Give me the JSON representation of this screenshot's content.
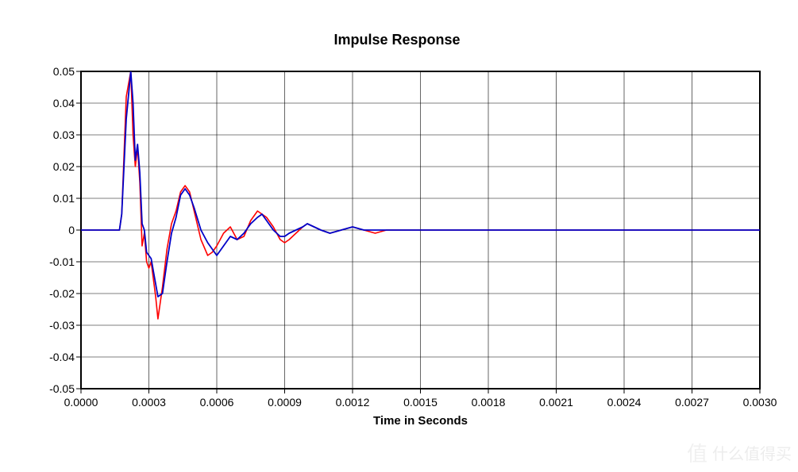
{
  "chart": {
    "type": "line",
    "title": "Impulse Response",
    "title_fontsize": 18,
    "title_fontweight": "bold",
    "xlabel": "Time in Seconds",
    "xlabel_fontsize": 15,
    "xlabel_fontweight": "bold",
    "axis_tick_fontsize": 14,
    "background_color": "#ffffff",
    "plot_border_color": "#000000",
    "plot_border_width": 2,
    "grid_color": "#000000",
    "grid_width": 0.6,
    "xlim": [
      0.0,
      0.003
    ],
    "xticks": [
      0.0,
      0.0003,
      0.0006,
      0.0009,
      0.0012,
      0.0015,
      0.0018,
      0.0021,
      0.0024,
      0.0027,
      0.003
    ],
    "xtick_labels": [
      "0.0000",
      "0.0003",
      "0.0006",
      "0.0009",
      "0.0012",
      "0.0015",
      "0.0018",
      "0.0021",
      "0.0024",
      "0.0027",
      "0.0030"
    ],
    "ylim": [
      -0.05,
      0.05
    ],
    "yticks": [
      0.05,
      0.04,
      0.03,
      0.02,
      0.01,
      0,
      -0.01,
      -0.02,
      -0.03,
      -0.04,
      -0.05
    ],
    "ytick_labels": [
      "0.05",
      "0.04",
      "0.03",
      "0.02",
      "0.01",
      "0",
      "-0.01",
      "-0.02",
      "-0.03",
      "-0.04",
      "-0.05"
    ],
    "tick_mark_length": 6,
    "series": [
      {
        "name": "series-red",
        "color": "#ff0000",
        "line_width": 1.6,
        "x": [
          0.0,
          5e-05,
          0.0001,
          0.00015,
          0.00017,
          0.00018,
          0.0002,
          0.00022,
          0.00023,
          0.00024,
          0.00025,
          0.00026,
          0.00027,
          0.00028,
          0.00029,
          0.0003,
          0.00031,
          0.00033,
          0.00034,
          0.00036,
          0.00038,
          0.0004,
          0.00042,
          0.00044,
          0.00046,
          0.00048,
          0.0005,
          0.00053,
          0.00056,
          0.00058,
          0.0006,
          0.00063,
          0.00066,
          0.00069,
          0.00072,
          0.00075,
          0.00078,
          0.0008,
          0.00082,
          0.00085,
          0.00088,
          0.0009,
          0.00092,
          0.00095,
          0.00098,
          0.001,
          0.00103,
          0.00106,
          0.0011,
          0.00115,
          0.0012,
          0.00125,
          0.0013,
          0.00135,
          0.0014,
          0.0015,
          0.0016,
          0.0017,
          0.0018,
          0.0019,
          0.002,
          0.0021,
          0.0022,
          0.0024,
          0.0026,
          0.0028,
          0.003
        ],
        "y": [
          0.0,
          0.0,
          0.0,
          0.0,
          0.0,
          0.005,
          0.042,
          0.05,
          0.03,
          0.02,
          0.026,
          0.015,
          -0.005,
          -0.001,
          -0.01,
          -0.012,
          -0.01,
          -0.021,
          -0.028,
          -0.018,
          -0.006,
          0.002,
          0.006,
          0.012,
          0.014,
          0.012,
          0.006,
          -0.003,
          -0.008,
          -0.007,
          -0.005,
          -0.001,
          0.001,
          -0.003,
          -0.002,
          0.003,
          0.006,
          0.005,
          0.004,
          0.001,
          -0.003,
          -0.004,
          -0.003,
          -0.001,
          0.001,
          0.002,
          0.001,
          0.0,
          -0.001,
          0.0,
          0.001,
          0.0,
          -0.001,
          0.0,
          0.0,
          0.0,
          0.0,
          0.0,
          0.0,
          0.0,
          0.0,
          0.0,
          0.0,
          0.0,
          0.0,
          0.0,
          0.0
        ]
      },
      {
        "name": "series-blue",
        "color": "#0000c8",
        "line_width": 1.8,
        "x": [
          0.0,
          5e-05,
          0.0001,
          0.00015,
          0.00017,
          0.00018,
          0.0002,
          0.00022,
          0.00023,
          0.00024,
          0.00025,
          0.00026,
          0.00027,
          0.00028,
          0.00029,
          0.0003,
          0.00031,
          0.00033,
          0.00034,
          0.00036,
          0.00038,
          0.0004,
          0.00042,
          0.00044,
          0.00046,
          0.00048,
          0.0005,
          0.00053,
          0.00056,
          0.00058,
          0.0006,
          0.00063,
          0.00066,
          0.00069,
          0.00072,
          0.00075,
          0.00078,
          0.0008,
          0.00082,
          0.00085,
          0.00088,
          0.0009,
          0.00092,
          0.00095,
          0.00098,
          0.001,
          0.00103,
          0.00106,
          0.0011,
          0.00115,
          0.0012,
          0.00125,
          0.0013,
          0.00135,
          0.0014,
          0.0015,
          0.0016,
          0.0017,
          0.0018,
          0.0019,
          0.002,
          0.0021,
          0.0022,
          0.0024,
          0.0026,
          0.0028,
          0.003
        ],
        "y": [
          0.0,
          0.0,
          0.0,
          0.0,
          0.0,
          0.005,
          0.035,
          0.05,
          0.04,
          0.022,
          0.027,
          0.018,
          0.002,
          0.0,
          -0.007,
          -0.008,
          -0.009,
          -0.017,
          -0.021,
          -0.02,
          -0.01,
          -0.001,
          0.004,
          0.011,
          0.013,
          0.011,
          0.007,
          0.0,
          -0.004,
          -0.006,
          -0.008,
          -0.005,
          -0.002,
          -0.003,
          -0.001,
          0.002,
          0.004,
          0.005,
          0.003,
          0.0,
          -0.002,
          -0.002,
          -0.001,
          0.0,
          0.001,
          0.002,
          0.001,
          0.0,
          -0.001,
          0.0,
          0.001,
          0.0,
          0.0,
          0.0,
          0.0,
          0.0,
          0.0,
          0.0,
          0.0,
          0.0,
          0.0,
          0.0,
          0.0,
          0.0,
          0.0,
          0.0,
          0.0
        ]
      }
    ]
  },
  "watermark": {
    "text": "什么值得买",
    "icon": "值",
    "color": "#999999",
    "opacity": 0.15
  }
}
